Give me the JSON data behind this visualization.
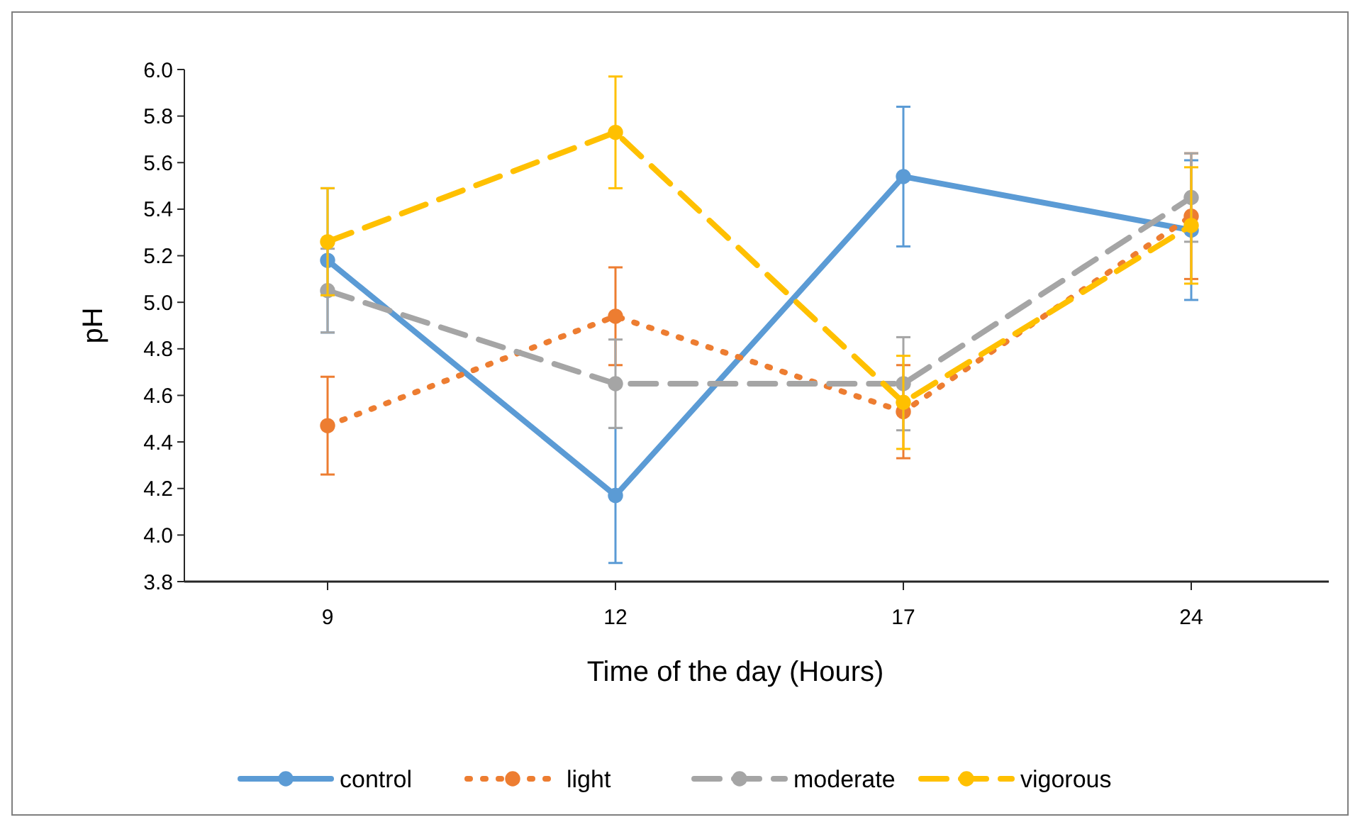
{
  "chart_data": {
    "type": "line",
    "xlabel": "Time of the day (Hours)",
    "ylabel": "pH",
    "categories": [
      "9",
      "12",
      "17",
      "24"
    ],
    "ylim": [
      3.8,
      6.0
    ],
    "yticks": [
      {
        "value": 3.8,
        "label": "3.8"
      },
      {
        "value": 4.0,
        "label": "4.0"
      },
      {
        "value": 4.2,
        "label": "4.2"
      },
      {
        "value": 4.4,
        "label": "4.4"
      },
      {
        "value": 4.6,
        "label": "4.6"
      },
      {
        "value": 4.8,
        "label": "4.8"
      },
      {
        "value": 5.0,
        "label": "5.0"
      },
      {
        "value": 5.2,
        "label": "5.2"
      },
      {
        "value": 5.4,
        "label": "5.4"
      },
      {
        "value": 5.6,
        "label": "5.6"
      },
      {
        "value": 5.8,
        "label": "5.8"
      },
      {
        "value": 6.0,
        "label": "6.0"
      }
    ],
    "grid": false,
    "legend": "bottom",
    "marker": "circle",
    "series": [
      {
        "name": "control",
        "color": "#5b9bd5",
        "line_style": "solid",
        "values": [
          5.18,
          4.17,
          5.54,
          5.31
        ],
        "errors": [
          0.31,
          0.29,
          0.3,
          0.3
        ]
      },
      {
        "name": "light",
        "color": "#ed7d31",
        "line_style": "dotted",
        "values": [
          4.47,
          4.94,
          4.53,
          5.37
        ],
        "errors": [
          0.21,
          0.21,
          0.2,
          0.27
        ]
      },
      {
        "name": "moderate",
        "color": "#a5a5a5",
        "line_style": "dashed",
        "values": [
          5.05,
          4.65,
          4.65,
          5.45
        ],
        "errors": [
          0.18,
          0.19,
          0.2,
          0.19
        ]
      },
      {
        "name": "vigorous",
        "color": "#ffc000",
        "line_style": "dashed",
        "values": [
          5.26,
          5.73,
          4.57,
          5.33
        ],
        "errors": [
          0.23,
          0.24,
          0.2,
          0.25
        ]
      }
    ]
  }
}
